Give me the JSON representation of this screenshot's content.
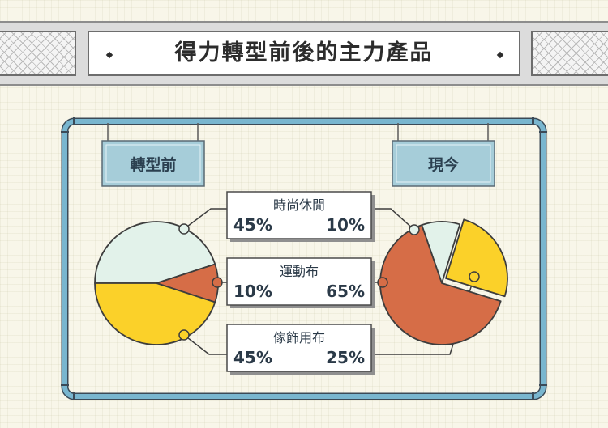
{
  "title": "得力轉型前後的主力產品",
  "chart_data": {
    "type": "pie",
    "categories": [
      "時尚休閒",
      "運動布",
      "傢飾用布"
    ],
    "series": [
      {
        "name": "轉型前",
        "values": [
          45,
          10,
          45
        ]
      },
      {
        "name": "現今",
        "values": [
          10,
          65,
          25
        ]
      }
    ],
    "value_labels": [
      {
        "left": "45%",
        "right": "10%"
      },
      {
        "left": "10%",
        "right": "65%"
      },
      {
        "left": "45%",
        "right": "25%"
      }
    ],
    "colors": [
      "#e2f2ea",
      "#d66d47",
      "#fbd129"
    ]
  }
}
